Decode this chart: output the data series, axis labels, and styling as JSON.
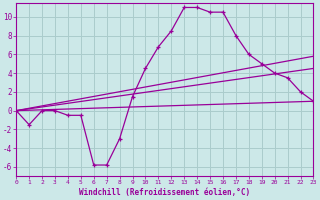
{
  "background_color": "#cce8e8",
  "plot_bg_color": "#cce8e8",
  "grid_color": "#aacccc",
  "line_color": "#990099",
  "xlabel": "Windchill (Refroidissement éolien,°C)",
  "xlim": [
    0,
    23
  ],
  "ylim": [
    -7,
    11.5
  ],
  "yticks": [
    -6,
    -4,
    -2,
    0,
    2,
    4,
    6,
    8,
    10
  ],
  "xticks": [
    0,
    1,
    2,
    3,
    4,
    5,
    6,
    7,
    8,
    9,
    10,
    11,
    12,
    13,
    14,
    15,
    16,
    17,
    18,
    19,
    20,
    21,
    22,
    23
  ],
  "main_line": {
    "x": [
      0,
      1,
      2,
      3,
      4,
      5,
      6,
      7,
      8,
      9,
      10,
      11,
      12,
      13,
      14,
      15,
      16,
      17,
      18,
      19,
      20,
      21,
      22,
      23
    ],
    "y": [
      0,
      -1.5,
      0,
      0,
      -0.5,
      -0.5,
      -5.8,
      -5.8,
      -3,
      1.5,
      4.5,
      6.8,
      8.5,
      11,
      11,
      10.5,
      10.5,
      8,
      6,
      5,
      4,
      3.5,
      2,
      1
    ]
  },
  "trend_lines": [
    {
      "x": [
        0,
        23
      ],
      "y": [
        0,
        5.8
      ]
    },
    {
      "x": [
        0,
        23
      ],
      "y": [
        0,
        4.5
      ]
    },
    {
      "x": [
        0,
        23
      ],
      "y": [
        0,
        1.0
      ]
    }
  ]
}
